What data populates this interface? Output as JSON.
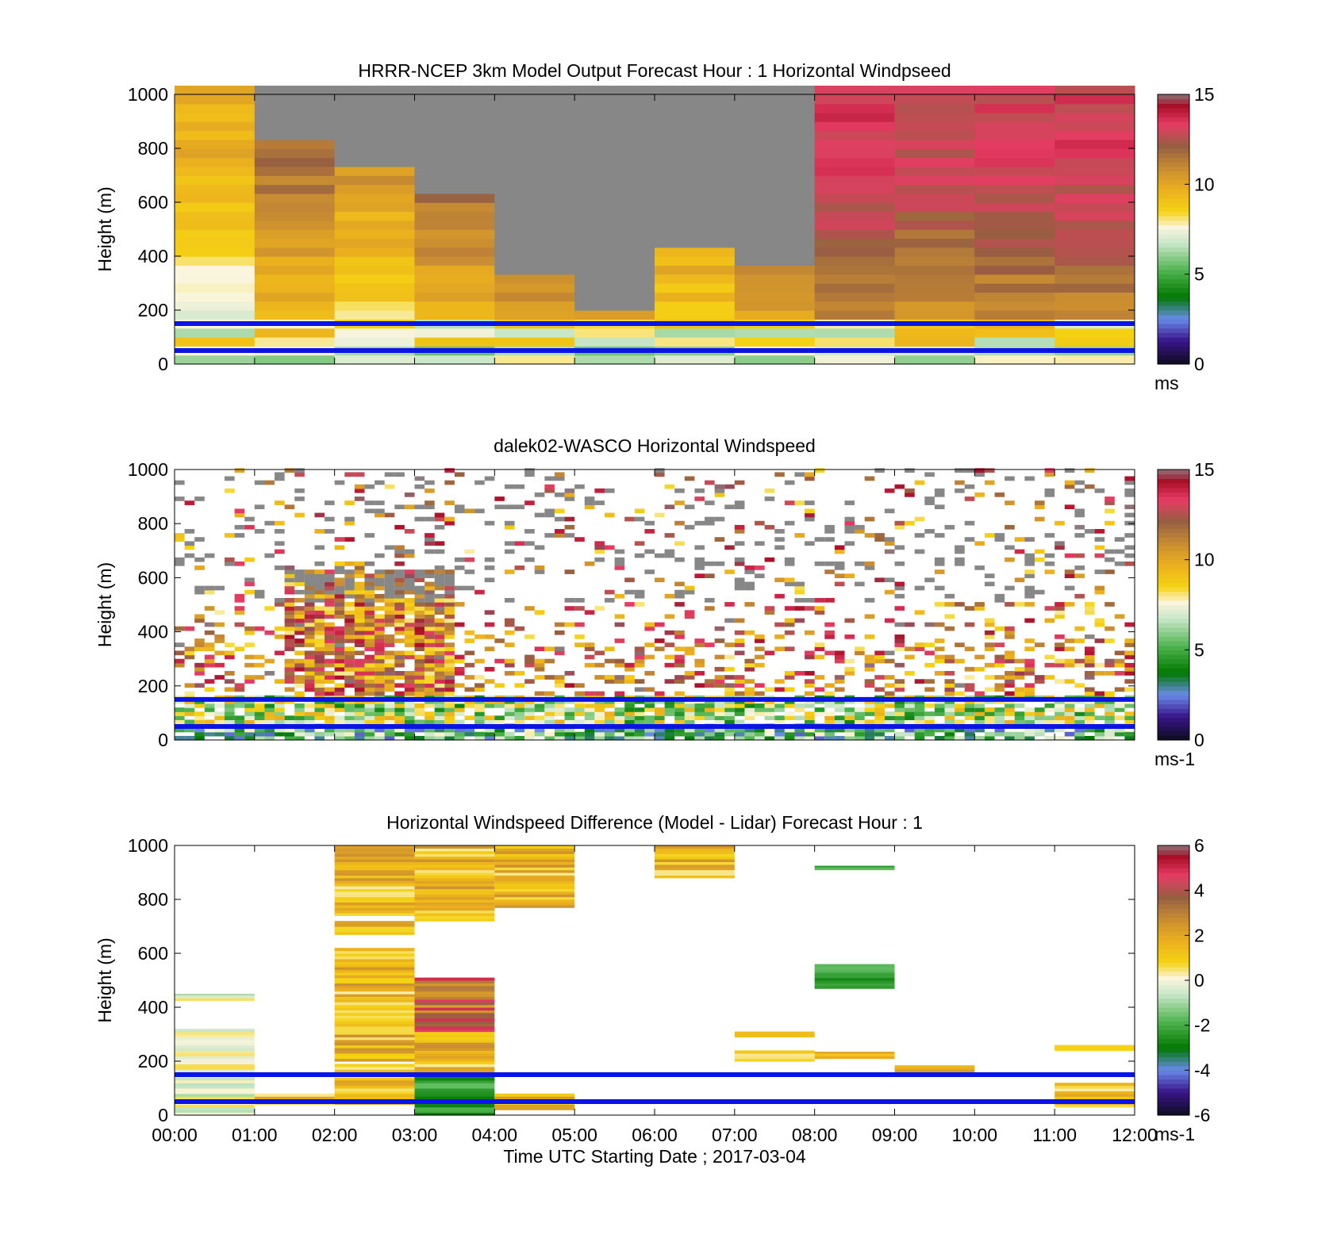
{
  "figure": {
    "xlabel": "Time UTC  Starting Date ; 2017-03-04",
    "x_ticks": [
      "00:00",
      "01:00",
      "02:00",
      "03:00",
      "04:00",
      "05:00",
      "06:00",
      "07:00",
      "08:00",
      "09:00",
      "10:00",
      "11:00",
      "12:00"
    ]
  },
  "chart_data": [
    {
      "type": "heatmap",
      "title": "HRRR-NCEP 3km Model Output   Forecast Hour : 1 Horizontal Windpseed",
      "ylabel": "Height (m)",
      "xlim": [
        "00:00",
        "12:00"
      ],
      "ylim": [
        0,
        1000
      ],
      "y_ticks": [
        "0",
        "200",
        "400",
        "600",
        "800",
        "1000"
      ],
      "colorbar": {
        "range": [
          0,
          15
        ],
        "ticks": [
          "0",
          "5",
          "10",
          "15"
        ],
        "unit": "ms"
      },
      "reference_lines_m": [
        50,
        150
      ],
      "columns": [
        {
          "t0": "00:00",
          "t1": "01:00",
          "top": 1000
        },
        {
          "t0": "01:00",
          "t1": "02:00",
          "top": 800
        },
        {
          "t0": "02:00",
          "t1": "03:00",
          "top": 700
        },
        {
          "t0": "03:00",
          "t1": "04:00",
          "top": 600
        },
        {
          "t0": "04:00",
          "t1": "05:00",
          "top": 300
        },
        {
          "t0": "05:00",
          "t1": "06:00",
          "top": 180
        },
        {
          "t0": "06:00",
          "t1": "07:00",
          "top": 400
        },
        {
          "t0": "07:00",
          "t1": "08:00",
          "top": 350
        },
        {
          "t0": "08:00",
          "t1": "09:00",
          "top": 1000
        },
        {
          "t0": "09:00",
          "t1": "10:00",
          "top": 1000
        },
        {
          "t0": "10:00",
          "t1": "11:00",
          "top": 1000
        },
        {
          "t0": "11:00",
          "t1": "12:00",
          "top": 1000
        }
      ]
    },
    {
      "type": "heatmap",
      "title": "dalek02-WASCO  Horizontal Windspeed",
      "ylabel": "Height (m)",
      "xlim": [
        "00:00",
        "12:00"
      ],
      "ylim": [
        0,
        1000
      ],
      "y_ticks": [
        "0",
        "200",
        "400",
        "600",
        "800",
        "1000"
      ],
      "colorbar": {
        "range": [
          0,
          15
        ],
        "ticks": [
          "0",
          "5",
          "10",
          "15"
        ],
        "unit": "ms-1"
      },
      "reference_lines_m": [
        50,
        150
      ]
    },
    {
      "type": "heatmap",
      "title": "Horizontal Windspeed Difference (Model - Lidar) Forecast Hour : 1",
      "ylabel": "Height (m)",
      "xlim": [
        "00:00",
        "12:00"
      ],
      "ylim": [
        0,
        1000
      ],
      "y_ticks": [
        "0",
        "200",
        "400",
        "600",
        "800",
        "1000"
      ],
      "colorbar": {
        "range": [
          -6,
          6
        ],
        "ticks": [
          "-6",
          "-4",
          "-2",
          "0",
          "2",
          "4",
          "6"
        ],
        "unit": "ms-1"
      },
      "reference_lines_m": [
        50,
        150
      ]
    }
  ]
}
